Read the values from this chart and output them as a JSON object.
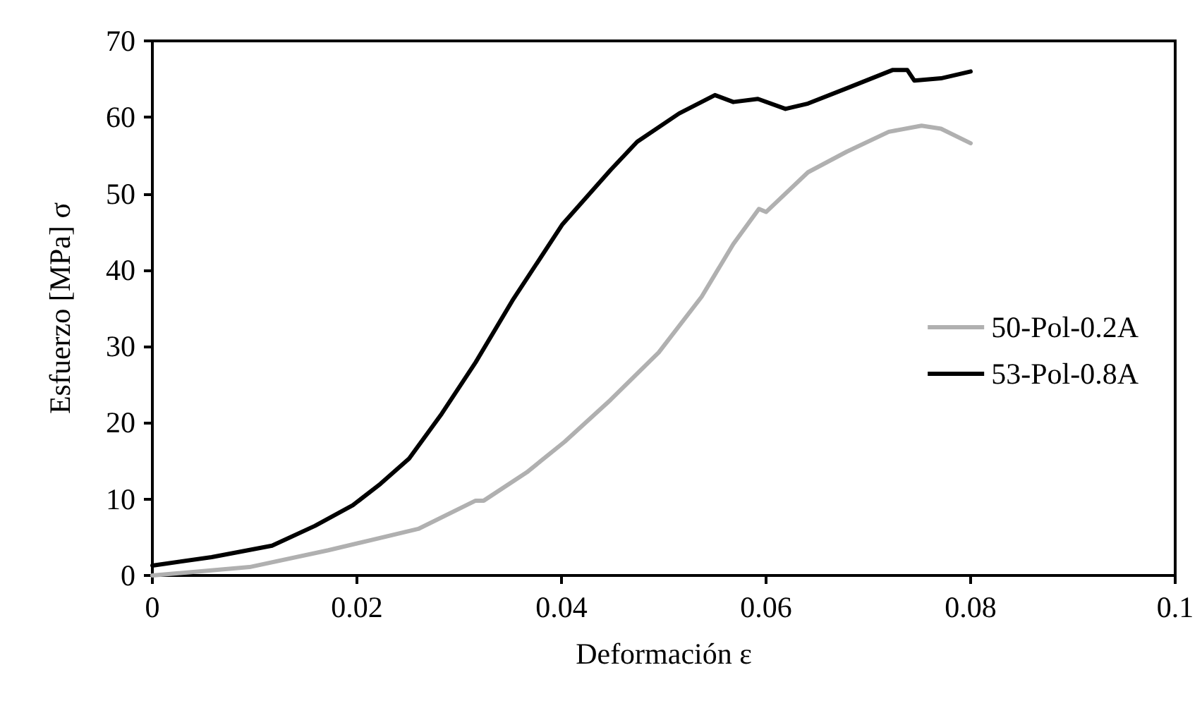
{
  "chart_data": {
    "type": "line",
    "xlabel": "Deformación ε",
    "ylabel": "Esfuerzo [MPa] σ",
    "xlim": [
      0,
      0.1
    ],
    "xticks": [
      0,
      0.02,
      0.04,
      0.06,
      0.08,
      0.1
    ],
    "ylim": [
      0,
      70
    ],
    "yticks": [
      0,
      10,
      20,
      30,
      40,
      50,
      60,
      70
    ],
    "grid": false,
    "legend": "right",
    "marker": "none",
    "line_style": "solid",
    "series": [
      {
        "name": "50-Pol-0.2A",
        "color": "#b0b0b0",
        "x": [
          0,
          0.0095,
          0.0172,
          0.026,
          0.0316,
          0.0324,
          0.0366,
          0.0403,
          0.0448,
          0.0495,
          0.0537,
          0.0568,
          0.0593,
          0.06,
          0.0641,
          0.0679,
          0.072,
          0.0752,
          0.0771,
          0.08
        ],
        "values": [
          0,
          1.1,
          3.3,
          6.1,
          9.8,
          9.8,
          13.5,
          17.5,
          23,
          29.2,
          36.5,
          43.4,
          48,
          47.6,
          52.8,
          55.5,
          58.1,
          58.9,
          58.5,
          56.6
        ]
      },
      {
        "name": "53-Pol-0.8A",
        "color": "#000000",
        "x": [
          0,
          0.0058,
          0.0117,
          0.0159,
          0.0196,
          0.0223,
          0.0251,
          0.0283,
          0.0316,
          0.0352,
          0.0401,
          0.0448,
          0.0474,
          0.0515,
          0.055,
          0.0568,
          0.0592,
          0.0619,
          0.0641,
          0.0679,
          0.0724,
          0.0738,
          0.0745,
          0.0771,
          0.08
        ],
        "values": [
          1.3,
          2.4,
          3.9,
          6.5,
          9.2,
          12,
          15.3,
          21.2,
          27.9,
          36,
          46,
          53.1,
          56.8,
          60.5,
          62.9,
          62,
          62.4,
          61.1,
          61.8,
          63.8,
          66.2,
          66.2,
          64.8,
          65.1,
          66
        ]
      }
    ]
  }
}
